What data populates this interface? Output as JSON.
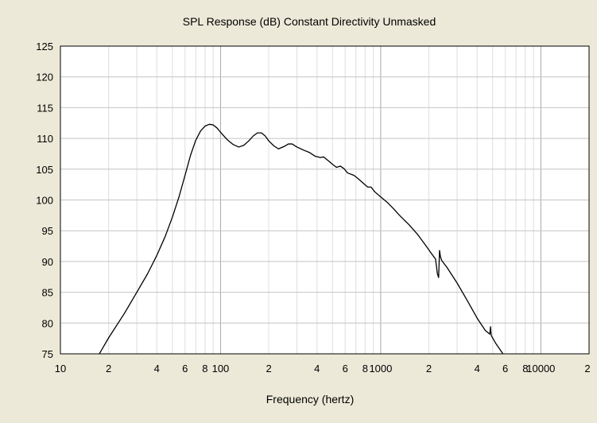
{
  "chart_data": {
    "type": "line",
    "title": "SPL Response (dB)   Constant Directivity   Unmasked",
    "xlabel": "Frequency (hertz)",
    "ylabel": "",
    "x_scale": "log",
    "xlim": [
      10,
      20000
    ],
    "ylim": [
      75,
      125
    ],
    "grid": true,
    "y_ticks": [
      "125",
      "120",
      "115",
      "110",
      "105",
      "100",
      "95",
      "90",
      "85",
      "80",
      "75"
    ],
    "x_ticks": [
      {
        "value": 10,
        "label": "10"
      },
      {
        "value": 20,
        "label": "2"
      },
      {
        "value": 40,
        "label": "4"
      },
      {
        "value": 60,
        "label": "6"
      },
      {
        "value": 80,
        "label": "8"
      },
      {
        "value": 100,
        "label": "100"
      },
      {
        "value": 200,
        "label": "2"
      },
      {
        "value": 400,
        "label": "4"
      },
      {
        "value": 600,
        "label": "6"
      },
      {
        "value": 800,
        "label": "8"
      },
      {
        "value": 1000,
        "label": "1000"
      },
      {
        "value": 2000,
        "label": "2"
      },
      {
        "value": 4000,
        "label": "4"
      },
      {
        "value": 6000,
        "label": "6"
      },
      {
        "value": 8000,
        "label": "8"
      },
      {
        "value": 10000,
        "label": "10000"
      },
      {
        "value": 20000,
        "label": "2"
      }
    ],
    "series": [
      {
        "color": "#000000",
        "points": [
          [
            17.5,
            75.0
          ],
          [
            20,
            77.6
          ],
          [
            25,
            81.5
          ],
          [
            30,
            85.0
          ],
          [
            35,
            88.0
          ],
          [
            40,
            91.0
          ],
          [
            45,
            94.0
          ],
          [
            50,
            97.2
          ],
          [
            55,
            100.5
          ],
          [
            60,
            104.0
          ],
          [
            65,
            107.3
          ],
          [
            70,
            109.7
          ],
          [
            75,
            111.2
          ],
          [
            80,
            112.0
          ],
          [
            85,
            112.3
          ],
          [
            90,
            112.2
          ],
          [
            95,
            111.7
          ],
          [
            100,
            111.0
          ],
          [
            110,
            109.8
          ],
          [
            120,
            109.0
          ],
          [
            130,
            108.6
          ],
          [
            140,
            108.9
          ],
          [
            150,
            109.6
          ],
          [
            160,
            110.4
          ],
          [
            170,
            110.9
          ],
          [
            180,
            110.9
          ],
          [
            190,
            110.4
          ],
          [
            200,
            109.6
          ],
          [
            215,
            108.8
          ],
          [
            230,
            108.3
          ],
          [
            250,
            108.7
          ],
          [
            265,
            109.1
          ],
          [
            280,
            109.1
          ],
          [
            300,
            108.6
          ],
          [
            330,
            108.1
          ],
          [
            360,
            107.7
          ],
          [
            390,
            107.1
          ],
          [
            420,
            106.9
          ],
          [
            440,
            107.0
          ],
          [
            470,
            106.4
          ],
          [
            500,
            105.8
          ],
          [
            530,
            105.3
          ],
          [
            560,
            105.5
          ],
          [
            590,
            105.1
          ],
          [
            620,
            104.4
          ],
          [
            680,
            104.0
          ],
          [
            720,
            103.5
          ],
          [
            780,
            102.7
          ],
          [
            830,
            102.1
          ],
          [
            870,
            102.1
          ],
          [
            920,
            101.3
          ],
          [
            1000,
            100.5
          ],
          [
            1100,
            99.6
          ],
          [
            1200,
            98.6
          ],
          [
            1300,
            97.6
          ],
          [
            1500,
            96.0
          ],
          [
            1700,
            94.4
          ],
          [
            1900,
            92.7
          ],
          [
            2100,
            91.1
          ],
          [
            2200,
            90.4
          ],
          [
            2260,
            88.0
          ],
          [
            2300,
            87.4
          ],
          [
            2330,
            91.8
          ],
          [
            2360,
            90.8
          ],
          [
            2400,
            90.2
          ],
          [
            2600,
            89.0
          ],
          [
            3000,
            86.5
          ],
          [
            3500,
            83.5
          ],
          [
            4000,
            80.8
          ],
          [
            4500,
            78.8
          ],
          [
            4800,
            78.2
          ],
          [
            4850,
            79.4
          ],
          [
            4900,
            78.0
          ],
          [
            5200,
            76.8
          ],
          [
            5800,
            75.0
          ]
        ]
      }
    ]
  }
}
